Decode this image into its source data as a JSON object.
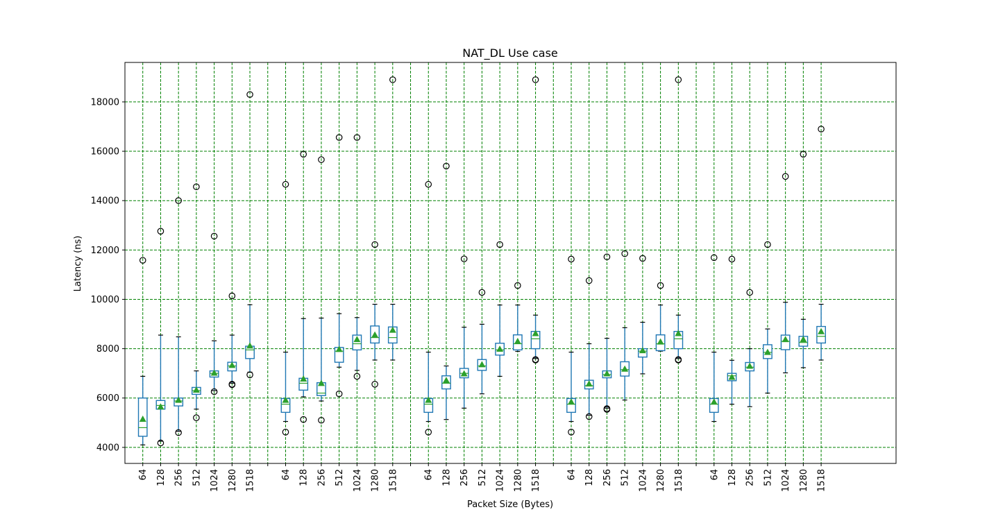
{
  "chart_data": {
    "type": "box",
    "title": "NAT_DL Use case",
    "xlabel": "Packet Size (Bytes)",
    "ylabel": "Latency (ns)",
    "ylim": [
      3350,
      19600
    ],
    "y_ticks": [
      4000,
      6000,
      8000,
      10000,
      12000,
      14000,
      16000,
      18000
    ],
    "grid": true,
    "group_separator": "blank category between groups",
    "colors": {
      "box": "#1f77b4",
      "median": "#2ca02c",
      "mean_marker": "#2ca02c",
      "grid": "#008000",
      "outlier_edge": "#000000",
      "whisker_cap": "#000000"
    },
    "groups": [
      {
        "boxes": [
          {
            "label": "64",
            "whislo": 4100,
            "q1": 4450,
            "med": 4800,
            "q3": 6000,
            "whishi": 6880,
            "mean": 5150,
            "fliers": [
              11580
            ]
          },
          {
            "label": "128",
            "whislo": 4250,
            "q1": 5550,
            "med": 5700,
            "q3": 5900,
            "whishi": 8550,
            "mean": 5650,
            "fliers": [
              4180,
              12760
            ]
          },
          {
            "label": "256",
            "whislo": 4650,
            "q1": 5680,
            "med": 5880,
            "q3": 6000,
            "whishi": 8480,
            "mean": 5920,
            "fliers": [
              4600,
              14000
            ]
          },
          {
            "label": "512",
            "whislo": 5550,
            "q1": 6150,
            "med": 6300,
            "q3": 6430,
            "whishi": 7100,
            "mean": 6330,
            "fliers": [
              5200,
              14560
            ]
          },
          {
            "label": "1024",
            "whislo": 6300,
            "q1": 6850,
            "med": 7000,
            "q3": 7100,
            "whishi": 8320,
            "mean": 7020,
            "fliers": [
              6260,
              12560
            ]
          },
          {
            "label": "1280",
            "whislo": 6600,
            "q1": 7100,
            "med": 7300,
            "q3": 7450,
            "whishi": 8550,
            "mean": 7330,
            "fliers": [
              6540,
              6560,
              10140
            ]
          },
          {
            "label": "1518",
            "whislo": 7050,
            "q1": 7600,
            "med": 7950,
            "q3": 8100,
            "whishi": 9780,
            "mean": 8120,
            "fliers": [
              6940,
              18300
            ]
          }
        ]
      },
      {
        "boxes": [
          {
            "label": "64",
            "whislo": 5050,
            "q1": 5420,
            "med": 5750,
            "q3": 5980,
            "whishi": 7860,
            "mean": 5920,
            "fliers": [
              4620,
              14660
            ]
          },
          {
            "label": "128",
            "whislo": 6050,
            "q1": 6320,
            "med": 6600,
            "q3": 6800,
            "whishi": 9220,
            "mean": 6780,
            "fliers": [
              5130,
              15880
            ]
          },
          {
            "label": "256",
            "whislo": 5880,
            "q1": 6100,
            "med": 6200,
            "q3": 6620,
            "whishi": 9240,
            "mean": 6600,
            "fliers": [
              5100,
              15660
            ]
          },
          {
            "label": "512",
            "whislo": 7250,
            "q1": 7450,
            "med": 7900,
            "q3": 8050,
            "whishi": 9420,
            "mean": 7980,
            "fliers": [
              6170,
              16560
            ]
          },
          {
            "label": "1024",
            "whislo": 7120,
            "q1": 7950,
            "med": 8200,
            "q3": 8550,
            "whishi": 9260,
            "mean": 8380,
            "fliers": [
              6880,
              16560
            ]
          },
          {
            "label": "1280",
            "whislo": 7540,
            "q1": 8230,
            "med": 8450,
            "q3": 8920,
            "whishi": 9800,
            "mean": 8560,
            "fliers": [
              6560,
              12220
            ]
          },
          {
            "label": "1518",
            "whislo": 7540,
            "q1": 8230,
            "med": 8450,
            "q3": 8880,
            "whishi": 9800,
            "mean": 8760,
            "fliers": [
              18900
            ]
          }
        ]
      },
      {
        "boxes": [
          {
            "label": "64",
            "whislo": 5050,
            "q1": 5420,
            "med": 5750,
            "q3": 5980,
            "whishi": 7860,
            "mean": 5920,
            "fliers": [
              4620,
              14660
            ]
          },
          {
            "label": "128",
            "whislo": 5130,
            "q1": 6370,
            "med": 6600,
            "q3": 6900,
            "whishi": 7300,
            "mean": 6720,
            "fliers": [
              15400
            ]
          },
          {
            "label": "256",
            "whislo": 5590,
            "q1": 6820,
            "med": 7000,
            "q3": 7200,
            "whishi": 8870,
            "mean": 6990,
            "fliers": [
              11640
            ]
          },
          {
            "label": "512",
            "whislo": 6170,
            "q1": 7120,
            "med": 7300,
            "q3": 7560,
            "whishi": 8990,
            "mean": 7360,
            "fliers": [
              10280
            ]
          },
          {
            "label": "1024",
            "whislo": 6880,
            "q1": 7740,
            "med": 7950,
            "q3": 8220,
            "whishi": 9770,
            "mean": 7990,
            "fliers": [
              12220
            ]
          },
          {
            "label": "1280",
            "whislo": 7890,
            "q1": 7950,
            "med": 8200,
            "q3": 8560,
            "whishi": 9770,
            "mean": 8300,
            "fliers": [
              10560
            ]
          },
          {
            "label": "1518",
            "whislo": 7600,
            "q1": 8000,
            "med": 8400,
            "q3": 8700,
            "whishi": 9360,
            "mean": 8620,
            "fliers": [
              7540,
              7560,
              18900
            ]
          }
        ]
      },
      {
        "boxes": [
          {
            "label": "64",
            "whislo": 5050,
            "q1": 5420,
            "med": 5750,
            "q3": 5980,
            "whishi": 7860,
            "mean": 5850,
            "fliers": [
              4620,
              11630
            ]
          },
          {
            "label": "128",
            "whislo": 5300,
            "q1": 6370,
            "med": 6500,
            "q3": 6720,
            "whishi": 8200,
            "mean": 6580,
            "fliers": [
              5250,
              10760
            ]
          },
          {
            "label": "256",
            "whislo": 5590,
            "q1": 6820,
            "med": 6950,
            "q3": 7100,
            "whishi": 8420,
            "mean": 6990,
            "fliers": [
              5540,
              5570,
              11720
            ]
          },
          {
            "label": "512",
            "whislo": 5920,
            "q1": 6890,
            "med": 7150,
            "q3": 7470,
            "whishi": 8850,
            "mean": 7180,
            "fliers": [
              11850
            ]
          },
          {
            "label": "1024",
            "whislo": 6980,
            "q1": 7660,
            "med": 7900,
            "q3": 8000,
            "whishi": 9070,
            "mean": 7930,
            "fliers": [
              11660
            ]
          },
          {
            "label": "1280",
            "whislo": 7900,
            "q1": 7920,
            "med": 8200,
            "q3": 8560,
            "whishi": 9770,
            "mean": 8280,
            "fliers": [
              10560
            ]
          },
          {
            "label": "1518",
            "whislo": 7600,
            "q1": 8000,
            "med": 8400,
            "q3": 8700,
            "whishi": 9360,
            "mean": 8620,
            "fliers": [
              7540,
              7560,
              18900
            ]
          }
        ]
      },
      {
        "boxes": [
          {
            "label": "64",
            "whislo": 5050,
            "q1": 5420,
            "med": 5750,
            "q3": 5980,
            "whishi": 7860,
            "mean": 5850,
            "fliers": [
              11690
            ]
          },
          {
            "label": "128",
            "whislo": 5750,
            "q1": 6700,
            "med": 6900,
            "q3": 7000,
            "whishi": 7530,
            "mean": 6850,
            "fliers": [
              11630
            ]
          },
          {
            "label": "256",
            "whislo": 5650,
            "q1": 7100,
            "med": 7250,
            "q3": 7440,
            "whishi": 8000,
            "mean": 7300,
            "fliers": [
              10280
            ]
          },
          {
            "label": "512",
            "whislo": 6200,
            "q1": 7600,
            "med": 7850,
            "q3": 8160,
            "whishi": 8800,
            "mean": 7860,
            "fliers": [
              12220
            ]
          },
          {
            "label": "1024",
            "whislo": 7020,
            "q1": 7960,
            "med": 8300,
            "q3": 8550,
            "whishi": 9880,
            "mean": 8380,
            "fliers": [
              14980
            ]
          },
          {
            "label": "1280",
            "whislo": 7230,
            "q1": 8100,
            "med": 8250,
            "q3": 8500,
            "whishi": 9190,
            "mean": 8380,
            "fliers": [
              15880
            ]
          },
          {
            "label": "1518",
            "whislo": 7540,
            "q1": 8230,
            "med": 8500,
            "q3": 8900,
            "whishi": 9800,
            "mean": 8700,
            "fliers": [
              16900
            ]
          }
        ]
      }
    ]
  }
}
